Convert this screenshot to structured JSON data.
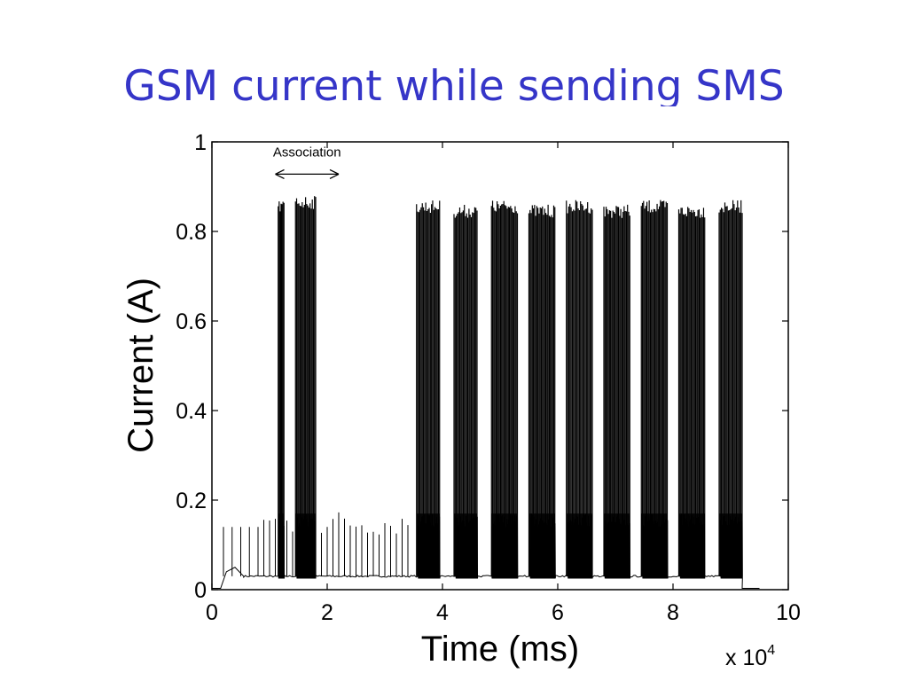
{
  "slide": {
    "title": "GSM current while sending SMS"
  },
  "chart_data": {
    "type": "line",
    "xlabel": "Time (ms)",
    "ylabel": "Current (A)",
    "x_multiplier_label": "x 10",
    "x_multiplier_exponent": "4",
    "xlim": [
      0,
      10
    ],
    "ylim": [
      0,
      1
    ],
    "x_ticks": [
      0,
      2,
      4,
      6,
      8,
      10
    ],
    "x_tick_labels": [
      "0",
      "2",
      "4",
      "6",
      "8",
      "10"
    ],
    "y_ticks": [
      0,
      0.2,
      0.4,
      0.6,
      0.8,
      1
    ],
    "y_tick_labels": [
      "0",
      "0.2",
      "0.4",
      "0.6",
      "0.8",
      "1"
    ],
    "grid": false,
    "annotation": {
      "text": "Association",
      "x_start": 1.1,
      "x_end": 2.2,
      "y": 0.92
    },
    "series": [
      {
        "values_note_baseline": 0.03,
        "idle_start": [
          [
            0.0,
            0.003
          ],
          [
            0.15,
            0.003
          ],
          [
            0.25,
            0.04
          ],
          [
            0.4,
            0.05
          ],
          [
            0.55,
            0.03
          ]
        ],
        "burst_groups": [
          {
            "x_start": 1.15,
            "x_end": 1.25,
            "peak": 0.87
          },
          {
            "x_start": 1.45,
            "x_end": 1.8,
            "peak": 0.88
          },
          {
            "x_start": 3.55,
            "x_end": 3.95,
            "peak": 0.87
          },
          {
            "x_start": 4.2,
            "x_end": 4.6,
            "peak": 0.86
          },
          {
            "x_start": 4.85,
            "x_end": 5.3,
            "peak": 0.87
          },
          {
            "x_start": 5.5,
            "x_end": 5.95,
            "peak": 0.86
          },
          {
            "x_start": 6.15,
            "x_end": 6.6,
            "peak": 0.87
          },
          {
            "x_start": 6.8,
            "x_end": 7.25,
            "peak": 0.86
          },
          {
            "x_start": 7.45,
            "x_end": 7.9,
            "peak": 0.87
          },
          {
            "x_start": 8.1,
            "x_end": 8.55,
            "peak": 0.86
          },
          {
            "x_start": 8.8,
            "x_end": 9.2,
            "peak": 0.87
          }
        ],
        "tail": [
          [
            9.2,
            0.003
          ],
          [
            9.5,
            0.003
          ]
        ]
      }
    ]
  }
}
